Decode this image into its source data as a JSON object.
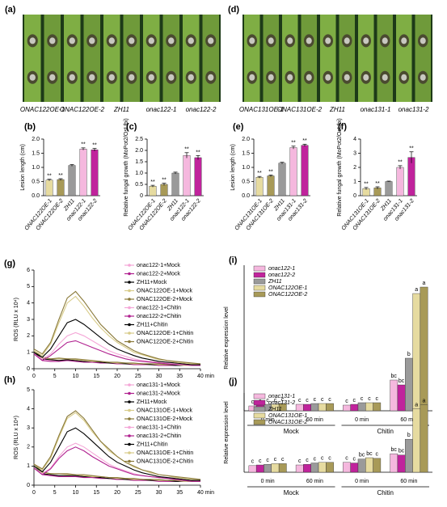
{
  "photos": [
    {
      "panel": "(a)",
      "labels": [
        "ONAC122OE-1",
        "ONAC122OE-2",
        "ZH11",
        "onac122-1",
        "onac122-2"
      ]
    },
    {
      "panel": "(d)",
      "labels": [
        "ONAC131OE-1",
        "ONAC131OE-2",
        "ZH11",
        "onac131-1",
        "onac131-2"
      ]
    }
  ],
  "chart_data": [
    {
      "type": "bar",
      "panel": "(b)",
      "ylabel": "Lesion length (cm)",
      "categories": [
        "ONAC122OE-1",
        "ONAC122OE-2",
        "ZH11",
        "onac122-1",
        "onac122-2"
      ],
      "values": [
        0.55,
        0.57,
        1.07,
        1.65,
        1.62
      ],
      "errors": [
        0.03,
        0.03,
        0.03,
        0.04,
        0.05
      ],
      "significance": [
        "**",
        "**",
        null,
        "**",
        "**"
      ],
      "colors": [
        "#e6dba0",
        "#a89a58",
        "#9a9a9a",
        "#f5b8de",
        "#c0239c"
      ],
      "ylim": [
        0,
        2
      ],
      "yticks": [
        {
          "value": 0,
          "label": "0.0"
        },
        0.5,
        {
          "value": 1,
          "label": "1.0"
        },
        1.5,
        {
          "value": 2,
          "label": "2.0"
        }
      ]
    },
    {
      "type": "bar",
      "panel": "(c)",
      "ylabel": "Relative fungal growth (MoPot2/OsUbi)",
      "categories": [
        "ONAC122OE-1",
        "ONAC122OE-2",
        "ZH11",
        "onac122-1",
        "onac122-2"
      ],
      "values": [
        0.42,
        0.5,
        1.0,
        1.78,
        1.68
      ],
      "errors": [
        0.04,
        0.05,
        0.04,
        0.12,
        0.09
      ],
      "significance": [
        "**",
        "**",
        null,
        "**",
        "**"
      ],
      "colors": [
        "#e6dba0",
        "#a89a58",
        "#9a9a9a",
        "#f5b8de",
        "#c0239c"
      ],
      "ylim": [
        0,
        2.5
      ],
      "yticks": [
        0,
        0.5,
        {
          "value": 1,
          "label": "1.0"
        },
        1.5,
        {
          "value": 2,
          "label": "2.0"
        },
        2.5
      ]
    },
    {
      "type": "bar",
      "panel": "(e)",
      "ylabel": "Lesion length (cm)",
      "categories": [
        "ONAC131OE-1",
        "ONAC131OE-2",
        "ZH11",
        "onac131-1",
        "onac131-2"
      ],
      "values": [
        0.65,
        0.7,
        1.15,
        1.7,
        1.78
      ],
      "errors": [
        0.03,
        0.03,
        0.03,
        0.05,
        0.04
      ],
      "significance": [
        "**",
        "**",
        null,
        "**",
        "**"
      ],
      "colors": [
        "#e6dba0",
        "#a89a58",
        "#9a9a9a",
        "#f5b8de",
        "#c0239c"
      ],
      "ylim": [
        0,
        2
      ],
      "yticks": [
        {
          "value": 0,
          "label": "0.0"
        },
        0.5,
        {
          "value": 1,
          "label": "1.0"
        },
        1.5,
        {
          "value": 2,
          "label": "2.0"
        }
      ]
    },
    {
      "type": "bar",
      "panel": "(f)",
      "ylabel": "Relative fungal growth (MoPot2/OsUbi)",
      "categories": [
        "ONAC131OE-1",
        "ONAC131OE-2",
        "ZH11",
        "onac131-1",
        "onac131-2"
      ],
      "values": [
        0.5,
        0.55,
        1.0,
        2.0,
        2.7
      ],
      "errors": [
        0.08,
        0.08,
        0.03,
        0.12,
        0.4
      ],
      "significance": [
        "**",
        "**",
        null,
        "**",
        "**"
      ],
      "colors": [
        "#e6dba0",
        "#a89a58",
        "#9a9a9a",
        "#f5b8de",
        "#c0239c"
      ],
      "ylim": [
        0,
        4
      ],
      "yticks": [
        0,
        1,
        2,
        3,
        4
      ]
    },
    {
      "type": "line",
      "panel": "(g)",
      "ylabel": "ROS (RLU x 10⁴)",
      "x": [
        0,
        2,
        4,
        6,
        8,
        10,
        12,
        14,
        16,
        18,
        20,
        22,
        24,
        26,
        28,
        30,
        32,
        34,
        36,
        38,
        40
      ],
      "xlim": [
        0,
        40
      ],
      "xticks": [
        0,
        5,
        10,
        15,
        20,
        25,
        30,
        35,
        {
          "value": 40,
          "label": "40 min"
        }
      ],
      "ylim": [
        0,
        6
      ],
      "yticks": [
        0,
        1,
        2,
        3,
        4,
        5,
        6
      ],
      "series": [
        {
          "name": "onac122-1+Mock",
          "color": "#f4a6d7",
          "values": [
            1.0,
            0.6,
            0.5,
            0.5,
            0.5,
            0.5,
            0.45,
            0.4,
            0.4,
            0.35,
            0.3,
            0.3,
            0.3,
            0.25,
            0.25,
            0.25,
            0.2,
            0.2,
            0.2,
            0.2,
            0.2
          ]
        },
        {
          "name": "onac122-2+Mock",
          "color": "#b0208f",
          "values": [
            0.9,
            0.5,
            0.45,
            0.45,
            0.5,
            0.45,
            0.4,
            0.4,
            0.35,
            0.35,
            0.3,
            0.3,
            0.25,
            0.25,
            0.25,
            0.2,
            0.2,
            0.2,
            0.2,
            0.2,
            0.2
          ]
        },
        {
          "name": "ZH11+Mock",
          "color": "#000000",
          "values": [
            1.0,
            0.6,
            0.55,
            0.5,
            0.55,
            0.5,
            0.45,
            0.45,
            0.4,
            0.35,
            0.35,
            0.3,
            0.3,
            0.3,
            0.25,
            0.25,
            0.25,
            0.2,
            0.2,
            0.2,
            0.2
          ]
        },
        {
          "name": "ONAC122OE-1+Mock",
          "color": "#d8cc8a",
          "values": [
            1.1,
            0.65,
            0.6,
            0.6,
            0.6,
            0.55,
            0.5,
            0.45,
            0.45,
            0.4,
            0.35,
            0.35,
            0.3,
            0.3,
            0.3,
            0.25,
            0.25,
            0.25,
            0.2,
            0.2,
            0.2
          ]
        },
        {
          "name": "ONAC122OE-2+Mock",
          "color": "#8a7a3a",
          "values": [
            1.1,
            0.7,
            0.6,
            0.65,
            0.6,
            0.6,
            0.55,
            0.5,
            0.45,
            0.4,
            0.4,
            0.35,
            0.35,
            0.3,
            0.3,
            0.3,
            0.25,
            0.25,
            0.25,
            0.2,
            0.2
          ]
        },
        {
          "name": "onac122-1+Chitin",
          "color": "#f4a6d7",
          "values": [
            0.9,
            0.6,
            0.9,
            1.5,
            2.0,
            2.2,
            2.0,
            1.7,
            1.4,
            1.1,
            0.9,
            0.75,
            0.6,
            0.5,
            0.45,
            0.4,
            0.35,
            0.3,
            0.25,
            0.25,
            0.2
          ]
        },
        {
          "name": "onac122-2+Chitin",
          "color": "#b0208f",
          "values": [
            0.9,
            0.5,
            0.8,
            1.2,
            1.6,
            1.7,
            1.5,
            1.3,
            1.1,
            0.9,
            0.75,
            0.6,
            0.5,
            0.45,
            0.4,
            0.35,
            0.3,
            0.25,
            0.25,
            0.2,
            0.2
          ]
        },
        {
          "name": "ZH11+Chitin",
          "color": "#000000",
          "values": [
            1.0,
            0.7,
            1.2,
            2.0,
            2.8,
            3.0,
            2.7,
            2.3,
            1.9,
            1.5,
            1.2,
            1.0,
            0.8,
            0.65,
            0.55,
            0.45,
            0.4,
            0.35,
            0.3,
            0.25,
            0.25
          ]
        },
        {
          "name": "ONAC122OE-1+Chitin",
          "color": "#d8cc8a",
          "values": [
            1.1,
            0.8,
            1.5,
            2.8,
            4.0,
            4.4,
            3.8,
            3.1,
            2.5,
            2.0,
            1.6,
            1.3,
            1.0,
            0.85,
            0.7,
            0.55,
            0.5,
            0.4,
            0.35,
            0.3,
            0.3
          ]
        },
        {
          "name": "ONAC122OE-2+Chitin",
          "color": "#8a7a3a",
          "values": [
            1.2,
            0.9,
            1.6,
            3.0,
            4.3,
            4.7,
            4.1,
            3.4,
            2.7,
            2.2,
            1.7,
            1.4,
            1.1,
            0.9,
            0.75,
            0.6,
            0.5,
            0.45,
            0.4,
            0.35,
            0.3
          ]
        }
      ]
    },
    {
      "type": "grouped_bar",
      "panel": "(i)",
      "ylabel": "Relative expression level",
      "categories": [
        "0 min",
        "60 min",
        "0 min",
        "60 min"
      ],
      "group_labels": [
        "Mock",
        "Chitin"
      ],
      "ylim": [
        0,
        18
      ],
      "series": [
        {
          "name": "onac122-1",
          "color": "#f5b8de",
          "values": [
            0.6,
            0.8,
            0.7,
            3.8
          ],
          "letters": [
            "c",
            "c",
            "c",
            "bc"
          ]
        },
        {
          "name": "onac122-2",
          "color": "#c0239c",
          "values": [
            0.7,
            0.8,
            0.8,
            3.2
          ],
          "letters": [
            "c",
            "c",
            "c",
            "bc"
          ]
        },
        {
          "name": "ZH11",
          "color": "#9a9a9a",
          "values": [
            0.8,
            0.9,
            1.0,
            6.5
          ],
          "letters": [
            "c",
            "c",
            "c",
            "b"
          ]
        },
        {
          "name": "ONAC122OE-1",
          "color": "#e6dba0",
          "values": [
            0.8,
            0.9,
            1.0,
            14.5
          ],
          "letters": [
            "c",
            "c",
            "c",
            "a"
          ]
        },
        {
          "name": "ONAC122OE-2",
          "color": "#a89a58",
          "values": [
            0.9,
            0.9,
            1.0,
            15.3
          ],
          "letters": [
            "c",
            "c",
            "c",
            "a"
          ]
        }
      ]
    },
    {
      "type": "line",
      "panel": "(h)",
      "ylabel": "ROS (RLU x 10⁴)",
      "x": [
        0,
        2,
        4,
        6,
        8,
        10,
        12,
        14,
        16,
        18,
        20,
        22,
        24,
        26,
        28,
        30,
        32,
        34,
        36,
        38,
        40
      ],
      "xlim": [
        0,
        40
      ],
      "xticks": [
        0,
        5,
        10,
        15,
        20,
        25,
        30,
        35,
        {
          "value": 40,
          "label": "40 min"
        }
      ],
      "ylim": [
        0,
        5
      ],
      "yticks": [
        0,
        1,
        2,
        3,
        4,
        5
      ],
      "series": [
        {
          "name": "onac131-1+Mock",
          "color": "#f4a6d7",
          "values": [
            0.9,
            0.6,
            0.5,
            0.5,
            0.5,
            0.45,
            0.45,
            0.4,
            0.4,
            0.35,
            0.3,
            0.3,
            0.3,
            0.25,
            0.25,
            0.25,
            0.2,
            0.2,
            0.2,
            0.2,
            0.2
          ]
        },
        {
          "name": "onac131-2+Mock",
          "color": "#b0208f",
          "values": [
            0.9,
            0.55,
            0.5,
            0.45,
            0.45,
            0.45,
            0.4,
            0.4,
            0.35,
            0.35,
            0.3,
            0.3,
            0.25,
            0.25,
            0.25,
            0.2,
            0.2,
            0.2,
            0.2,
            0.2,
            0.2
          ]
        },
        {
          "name": "ZH11+Mock",
          "color": "#000000",
          "values": [
            1.0,
            0.6,
            0.55,
            0.5,
            0.5,
            0.5,
            0.45,
            0.45,
            0.4,
            0.35,
            0.35,
            0.3,
            0.3,
            0.3,
            0.25,
            0.25,
            0.25,
            0.2,
            0.2,
            0.2,
            0.2
          ]
        },
        {
          "name": "ONAC131OE-1+Mock",
          "color": "#d8cc8a",
          "values": [
            1.0,
            0.65,
            0.6,
            0.6,
            0.55,
            0.55,
            0.5,
            0.45,
            0.45,
            0.4,
            0.35,
            0.35,
            0.3,
            0.3,
            0.3,
            0.25,
            0.25,
            0.25,
            0.2,
            0.2,
            0.2
          ]
        },
        {
          "name": "ONAC131OE-2+Mock",
          "color": "#8a7a3a",
          "values": [
            1.1,
            0.7,
            0.6,
            0.6,
            0.6,
            0.55,
            0.55,
            0.5,
            0.45,
            0.4,
            0.4,
            0.35,
            0.35,
            0.3,
            0.3,
            0.3,
            0.25,
            0.25,
            0.25,
            0.2,
            0.2
          ]
        },
        {
          "name": "onac131-1+Chitin",
          "color": "#f4a6d7",
          "values": [
            0.9,
            0.6,
            0.9,
            1.5,
            2.0,
            2.2,
            2.0,
            1.7,
            1.4,
            1.1,
            0.9,
            0.75,
            0.6,
            0.5,
            0.45,
            0.4,
            0.35,
            0.3,
            0.25,
            0.25,
            0.2
          ]
        },
        {
          "name": "onac131-2+Chitin",
          "color": "#b0208f",
          "values": [
            0.9,
            0.55,
            0.85,
            1.4,
            1.8,
            2.0,
            1.8,
            1.5,
            1.25,
            1.0,
            0.85,
            0.7,
            0.55,
            0.5,
            0.45,
            0.4,
            0.35,
            0.3,
            0.25,
            0.2,
            0.2
          ]
        },
        {
          "name": "ZH11+Chitin",
          "color": "#000000",
          "values": [
            1.0,
            0.7,
            1.2,
            2.0,
            2.8,
            3.0,
            2.7,
            2.3,
            1.9,
            1.5,
            1.2,
            1.0,
            0.8,
            0.65,
            0.55,
            0.45,
            0.4,
            0.35,
            0.3,
            0.25,
            0.25
          ]
        },
        {
          "name": "ONAC131OE-1+Chitin",
          "color": "#d8cc8a",
          "values": [
            1.1,
            0.8,
            1.4,
            2.5,
            3.5,
            3.8,
            3.4,
            2.8,
            2.3,
            1.8,
            1.5,
            1.2,
            0.95,
            0.8,
            0.65,
            0.55,
            0.5,
            0.4,
            0.35,
            0.3,
            0.3
          ]
        },
        {
          "name": "ONAC131OE-2+Chitin",
          "color": "#8a7a3a",
          "values": [
            1.1,
            0.85,
            1.5,
            2.6,
            3.6,
            3.9,
            3.5,
            2.9,
            2.3,
            1.9,
            1.5,
            1.2,
            1.0,
            0.8,
            0.7,
            0.55,
            0.5,
            0.45,
            0.4,
            0.35,
            0.3
          ]
        }
      ]
    },
    {
      "type": "grouped_bar",
      "panel": "(j)",
      "ylabel": "Relative expression level",
      "categories": [
        "0 min",
        "60 min",
        "0 min",
        "60 min"
      ],
      "group_labels": [
        "Mock",
        "Chitin"
      ],
      "ylim": [
        0,
        12
      ],
      "series": [
        {
          "name": "onac131-1",
          "color": "#f5b8de",
          "values": [
            1.0,
            1.1,
            1.5,
            2.8
          ],
          "letters": [
            "c",
            "c",
            "c",
            "bc"
          ]
        },
        {
          "name": "onac131-2",
          "color": "#c0239c",
          "values": [
            1.1,
            1.2,
            1.4,
            2.6
          ],
          "letters": [
            "c",
            "c",
            "c",
            "bc"
          ]
        },
        {
          "name": "ZH11",
          "color": "#9a9a9a",
          "values": [
            1.2,
            1.4,
            2.0,
            5.0
          ],
          "letters": [
            "c",
            "c",
            "bc",
            "b"
          ]
        },
        {
          "name": "ONAC131OE-1",
          "color": "#e6dba0",
          "values": [
            1.3,
            1.5,
            2.2,
            9.6
          ],
          "letters": [
            "c",
            "c",
            "bc",
            "a"
          ]
        },
        {
          "name": "ONAC131OE-2",
          "color": "#a89a58",
          "values": [
            1.3,
            1.5,
            2.1,
            10.2
          ],
          "letters": [
            "c",
            "c",
            "c",
            "a"
          ]
        }
      ]
    }
  ]
}
